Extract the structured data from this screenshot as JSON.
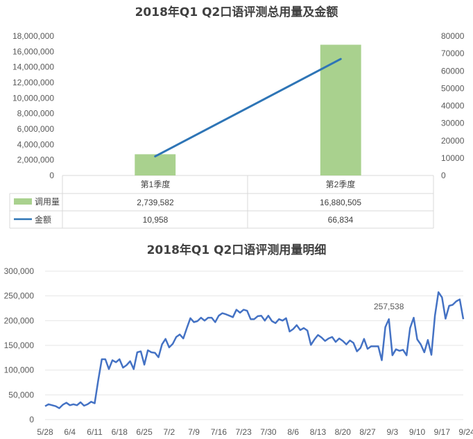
{
  "chart_data": [
    {
      "type": "bar",
      "title": "2018年Q1 Q2口语评测总用量及金额",
      "categories": [
        "第1季度",
        "第2季度"
      ],
      "series": [
        {
          "name": "调用量",
          "type": "bar",
          "axis": "left",
          "values": [
            2739582,
            16880505
          ],
          "labels": [
            "2,739,582",
            "16,880,505"
          ],
          "color": "#a9d18e"
        },
        {
          "name": "金额",
          "type": "line",
          "axis": "right",
          "values": [
            10958,
            66834
          ],
          "labels": [
            "10,958",
            "66,834"
          ],
          "color": "#2e75b6"
        }
      ],
      "y_left": {
        "range": [
          0,
          18000000
        ],
        "ticks": [
          "0",
          "2,000,000",
          "4,000,000",
          "6,000,000",
          "8,000,000",
          "10,000,000",
          "12,000,000",
          "14,000,000",
          "16,000,000",
          "18,000,000"
        ]
      },
      "y_right": {
        "range": [
          0,
          80000
        ],
        "ticks": [
          "0",
          "10000",
          "20000",
          "30000",
          "40000",
          "50000",
          "60000",
          "70000",
          "80000"
        ]
      },
      "data_table": true,
      "grid": false
    },
    {
      "type": "line",
      "title": "2018年Q1 Q2口语评测用量明细",
      "x_start": "5/28",
      "x_ticks": [
        "5/28",
        "6/4",
        "6/11",
        "6/18",
        "6/25",
        "7/2",
        "7/9",
        "7/16",
        "7/23",
        "7/30",
        "8/6",
        "8/13",
        "8/20",
        "8/27",
        "9/3",
        "9/10",
        "9/17",
        "9/24"
      ],
      "y_range": [
        0,
        300000
      ],
      "y_ticks": [
        "0",
        "50,000",
        "100,000",
        "150,000",
        "200,000",
        "250,000",
        "300,000"
      ],
      "grid": true,
      "color": "#4472c4",
      "annotation": {
        "text": "257,538",
        "index": 97
      },
      "values": [
        27000,
        31000,
        29000,
        27000,
        23000,
        30000,
        34000,
        29000,
        31000,
        29000,
        35000,
        28000,
        31000,
        36000,
        33000,
        80000,
        122000,
        122000,
        102000,
        120000,
        116000,
        122000,
        105000,
        110000,
        118000,
        102000,
        136000,
        138000,
        111000,
        140000,
        136000,
        135000,
        126000,
        152000,
        163000,
        146000,
        153000,
        167000,
        172000,
        164000,
        185000,
        205000,
        197000,
        199000,
        206000,
        200000,
        206000,
        206000,
        197000,
        210000,
        215000,
        213000,
        210000,
        207000,
        222000,
        216000,
        222000,
        220000,
        203000,
        203000,
        209000,
        210000,
        200000,
        210000,
        199000,
        195000,
        203000,
        200000,
        205000,
        178000,
        183000,
        191000,
        181000,
        185000,
        180000,
        151000,
        162000,
        171000,
        166000,
        159000,
        164000,
        167000,
        157000,
        164000,
        159000,
        152000,
        160000,
        155000,
        138000,
        145000,
        163000,
        143000,
        148000,
        148000,
        148000,
        120000,
        187000,
        203000,
        130000,
        142000,
        139000,
        141000,
        130000,
        185000,
        206000,
        162000,
        152000,
        136000,
        161000,
        131000,
        210000,
        257538,
        247000,
        204000,
        230000,
        232000,
        239000,
        243000,
        203000
      ]
    }
  ]
}
